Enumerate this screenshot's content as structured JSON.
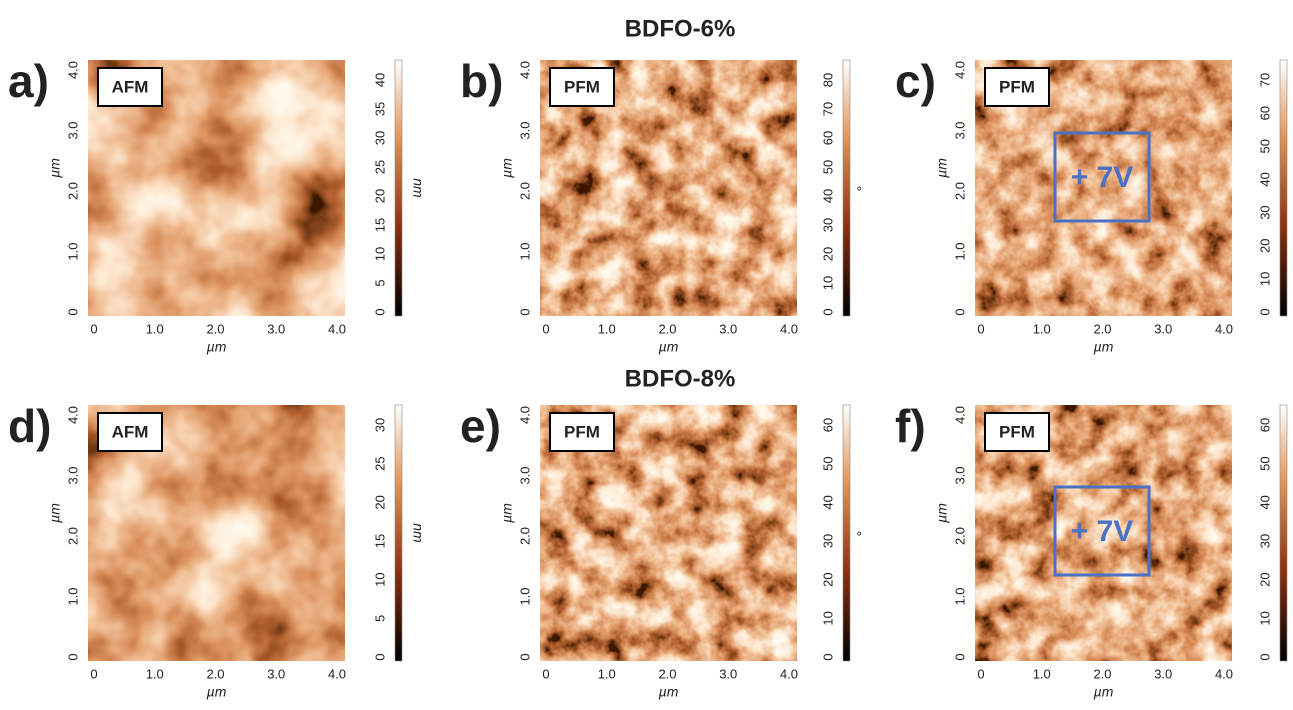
{
  "rows": [
    {
      "title": "BDFO-6%",
      "panels": [
        {
          "label": "a)",
          "mode": "AFM",
          "xticks": [
            "0",
            "1.0",
            "2.0",
            "3.0",
            "4.0"
          ],
          "yticks": [
            "0",
            "1.0",
            "2.0",
            "3.0",
            "4.0"
          ],
          "xlabel": "µm",
          "ylabel": "µm",
          "colorbar_ticks": [
            "0",
            "5",
            "10",
            "15",
            "20",
            "25",
            "30",
            "35",
            "40"
          ],
          "colorbar_unit": "nm"
        },
        {
          "label": "b)",
          "mode": "PFM",
          "xticks": [
            "0",
            "1.0",
            "2.0",
            "3.0",
            "4.0"
          ],
          "yticks": [
            "0",
            "1.0",
            "2.0",
            "3.0",
            "4.0"
          ],
          "xlabel": "µm",
          "ylabel": "µm",
          "colorbar_ticks": [
            "0",
            "10",
            "20",
            "30",
            "40",
            "50",
            "60",
            "70",
            "80"
          ],
          "colorbar_unit": "°"
        },
        {
          "label": "c)",
          "mode": "PFM",
          "xticks": [
            "0",
            "1.0",
            "2.0",
            "3.0",
            "4.0"
          ],
          "yticks": [
            "0",
            "1.0",
            "2.0",
            "3.0",
            "4.0"
          ],
          "xlabel": "µm",
          "ylabel": "µm",
          "colorbar_ticks": [
            "0",
            "10",
            "20",
            "30",
            "40",
            "50",
            "60",
            "70"
          ],
          "box_label": "+ 7V"
        }
      ]
    },
    {
      "title": "BDFO-8%",
      "panels": [
        {
          "label": "d)",
          "mode": "AFM",
          "xticks": [
            "0",
            "1.0",
            "2.0",
            "3.0",
            "4.0"
          ],
          "yticks": [
            "0",
            "1.0",
            "2.0",
            "3.0",
            "4.0"
          ],
          "xlabel": "µm",
          "ylabel": "µm",
          "colorbar_ticks": [
            "0",
            "5",
            "10",
            "15",
            "20",
            "25",
            "30"
          ],
          "colorbar_unit": "nm"
        },
        {
          "label": "e)",
          "mode": "PFM",
          "xticks": [
            "0",
            "1.0",
            "2.0",
            "3.0",
            "4.0"
          ],
          "yticks": [
            "0",
            "1.0",
            "2.0",
            "3.0",
            "4.0"
          ],
          "xlabel": "µm",
          "ylabel": "µm",
          "colorbar_ticks": [
            "0",
            "10",
            "20",
            "30",
            "40",
            "50",
            "60"
          ],
          "colorbar_unit": "°"
        },
        {
          "label": "f)",
          "mode": "PFM",
          "xticks": [
            "0",
            "1.0",
            "2.0",
            "3.0",
            "4.0"
          ],
          "yticks": [
            "0",
            "1.0",
            "2.0",
            "3.0",
            "4.0"
          ],
          "xlabel": "µm",
          "ylabel": "µm",
          "colorbar_ticks": [
            "0",
            "10",
            "20",
            "30",
            "40",
            "50",
            "60"
          ],
          "box_label": "+ 7V"
        }
      ]
    }
  ]
}
